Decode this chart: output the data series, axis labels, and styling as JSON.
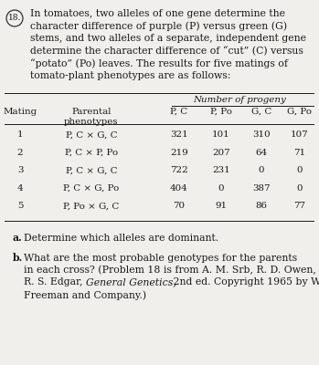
{
  "bg_color": "#f0efeb",
  "text_color": "#1a1a1a",
  "col_headers": [
    "Mating",
    "Parental\nphenotypes",
    "P, C",
    "P, Po",
    "G, C",
    "G, Po"
  ],
  "rows": [
    [
      "1",
      "P, C × G, C",
      "321",
      "101",
      "310",
      "107"
    ],
    [
      "2",
      "P, C × P, Po",
      "219",
      "207",
      "64",
      "71"
    ],
    [
      "3",
      "P, C × G, C",
      "722",
      "231",
      "0",
      "0"
    ],
    [
      "4",
      "P, C × G, Po",
      "404",
      "0",
      "387",
      "0"
    ],
    [
      "5",
      "P, Po × G, C",
      "70",
      "91",
      "86",
      "77"
    ]
  ]
}
